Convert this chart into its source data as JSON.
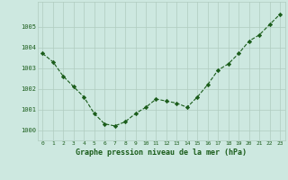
{
  "x": [
    0,
    1,
    2,
    3,
    4,
    5,
    6,
    7,
    8,
    9,
    10,
    11,
    12,
    13,
    14,
    15,
    16,
    17,
    18,
    19,
    20,
    21,
    22,
    23
  ],
  "y": [
    1003.7,
    1003.3,
    1002.6,
    1002.1,
    1001.6,
    1000.8,
    1000.3,
    1000.2,
    1000.4,
    1000.8,
    1001.1,
    1001.5,
    1001.4,
    1001.3,
    1001.1,
    1001.6,
    1002.2,
    1002.9,
    1003.2,
    1003.7,
    1004.3,
    1004.6,
    1005.1,
    1005.6
  ],
  "bg_color": "#cde8e0",
  "line_color": "#1a5c1a",
  "marker_color": "#1a5c1a",
  "grid_color": "#b0ccbf",
  "tick_label_color": "#1a5c1a",
  "xlabel": "Graphe pression niveau de la mer (hPa)",
  "xlabel_color": "#1a5c1a",
  "ylim": [
    999.5,
    1006.2
  ],
  "yticks": [
    1000,
    1001,
    1002,
    1003,
    1004,
    1005
  ],
  "xticks": [
    0,
    1,
    2,
    3,
    4,
    5,
    6,
    7,
    8,
    9,
    10,
    11,
    12,
    13,
    14,
    15,
    16,
    17,
    18,
    19,
    20,
    21,
    22,
    23
  ],
  "figsize": [
    3.2,
    2.0
  ],
  "dpi": 100
}
